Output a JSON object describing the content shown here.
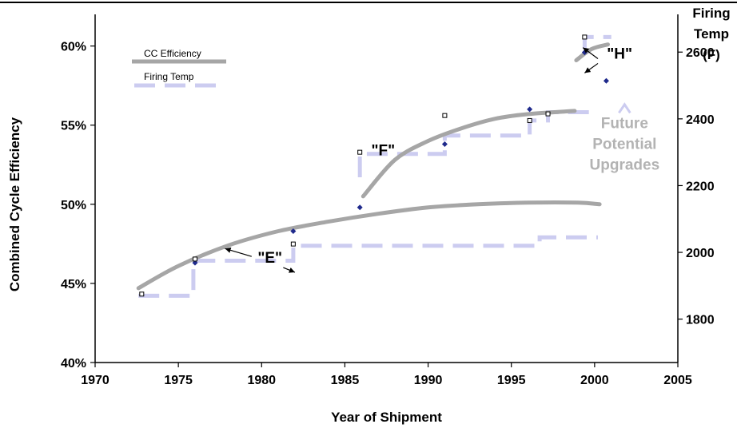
{
  "chart_data": {
    "type": "line",
    "title": "",
    "xlabel": "Year of Shipment",
    "ylabel": "Combined Cycle Efficiency",
    "y2label": [
      "Firing",
      "Temp",
      "(F)"
    ],
    "xlim": [
      1970,
      2005
    ],
    "ylim": [
      40,
      62
    ],
    "y2lim": [
      1670,
      2713
    ],
    "x_ticks": [
      1970,
      1975,
      1980,
      1985,
      1990,
      1995,
      2000,
      2005
    ],
    "y_ticks": [
      40,
      45,
      50,
      55,
      60
    ],
    "y_tick_labels": [
      "40%",
      "45%",
      "50%",
      "55%",
      "60%"
    ],
    "y2_ticks": [
      1800,
      2000,
      2200,
      2400,
      2600
    ],
    "grid": false,
    "legend_position": "top-left",
    "legend": [
      {
        "label": "CC Efficiency",
        "color": "#a6a6a6",
        "style": "solid"
      },
      {
        "label": "Firing Temp",
        "color": "#ccccf0",
        "style": "dashed"
      }
    ],
    "efficiency_curves": [
      {
        "name": "\"E\"",
        "x": [
          1972.6,
          1975,
          1978,
          1981,
          1984,
          1987,
          1990,
          1993,
          1996,
          1999,
          2000.3
        ],
        "y": [
          44.7,
          46.1,
          47.4,
          48.3,
          48.9,
          49.4,
          49.8,
          50.0,
          50.1,
          50.1,
          50.0
        ]
      },
      {
        "name": "\"F\"",
        "x": [
          1986.1,
          1988,
          1990,
          1992,
          1994,
          1996,
          1998.8
        ],
        "y": [
          50.5,
          52.8,
          54.0,
          54.8,
          55.4,
          55.7,
          55.9
        ]
      },
      {
        "name": "\"H\"",
        "x": [
          1998.9,
          1999.8,
          2000.8
        ],
        "y": [
          59.1,
          59.8,
          60.1
        ]
      }
    ],
    "efficiency_points": {
      "x": [
        1976,
        1981.9,
        1985.9,
        1991,
        1996.1,
        1999.4,
        2000.7
      ],
      "y": [
        46.3,
        48.3,
        49.8,
        53.8,
        56.0,
        59.6,
        57.8
      ]
    },
    "firing_temp_steps": [
      {
        "x": [
          1972.6,
          1975.9,
          1975.9,
          1981.9,
          1981.9,
          1996.7,
          1996.7,
          2000.2
        ],
        "y": [
          1870,
          1870,
          1975,
          1975,
          2020,
          2020,
          2045,
          2045
        ]
      },
      {
        "x": [
          1985.9,
          1985.9,
          1991,
          1991,
          1996.1,
          1996.1,
          1997.2,
          1997.2,
          2000.2
        ],
        "y": [
          2225,
          2295,
          2295,
          2350,
          2350,
          2395,
          2395,
          2420,
          2420
        ]
      },
      {
        "x": [
          1999.4,
          1999.4,
          2001
        ],
        "y": [
          2610,
          2645,
          2645
        ]
      }
    ],
    "firing_temp_points": {
      "x": [
        1972.8,
        1976,
        1981.9,
        1985.9,
        1991,
        1996.1,
        1997.2,
        1999.4
      ],
      "y": [
        1875,
        1980,
        2025,
        2300,
        2410,
        2395,
        2415,
        2645
      ]
    },
    "annotations": [
      {
        "text": "\"E\"",
        "x": 1980.5,
        "y": 46.3
      },
      {
        "text": "\"F\"",
        "x": 1987.3,
        "y": 53.1
      },
      {
        "text": "\"H\"",
        "x": 2001.5,
        "y": 59.2
      },
      {
        "text_lines": [
          "Future",
          "Potential",
          "Upgrades"
        ],
        "x": 2001.8,
        "y": 54.8
      }
    ]
  }
}
